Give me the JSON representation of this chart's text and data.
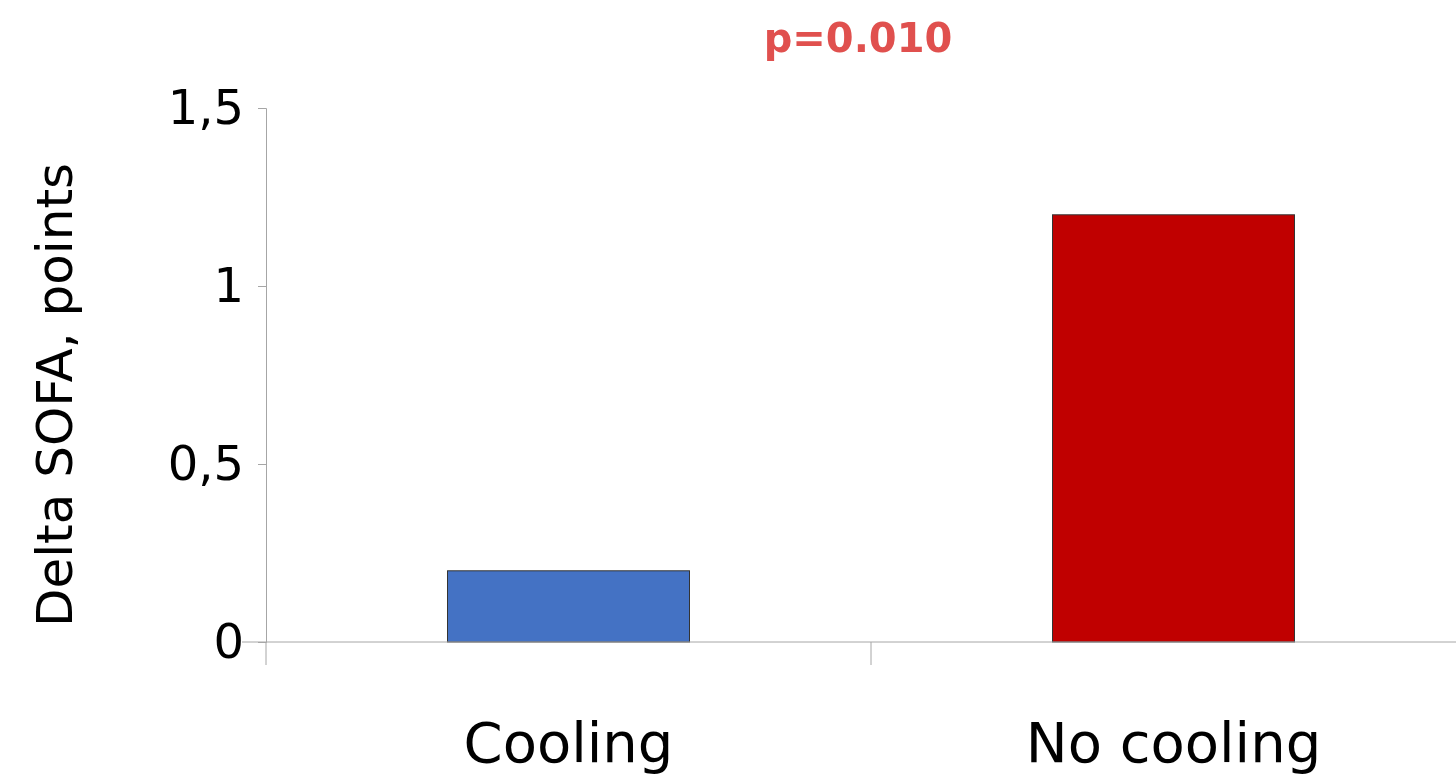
{
  "chart_data": {
    "type": "bar",
    "title": "p=0.010",
    "ylabel": "Delta SOFA, points",
    "categories": [
      "Cooling",
      "No cooling"
    ],
    "values": [
      0.2,
      1.2
    ],
    "colors": [
      "#4472c4",
      "#c00000"
    ],
    "ylim": [
      0,
      1.5
    ],
    "yticks": [
      0,
      {
        "value": 0.5,
        "label": "0,5"
      },
      1,
      {
        "value": 1.5,
        "label": "1,5"
      }
    ],
    "grid": false,
    "legend": false
  }
}
